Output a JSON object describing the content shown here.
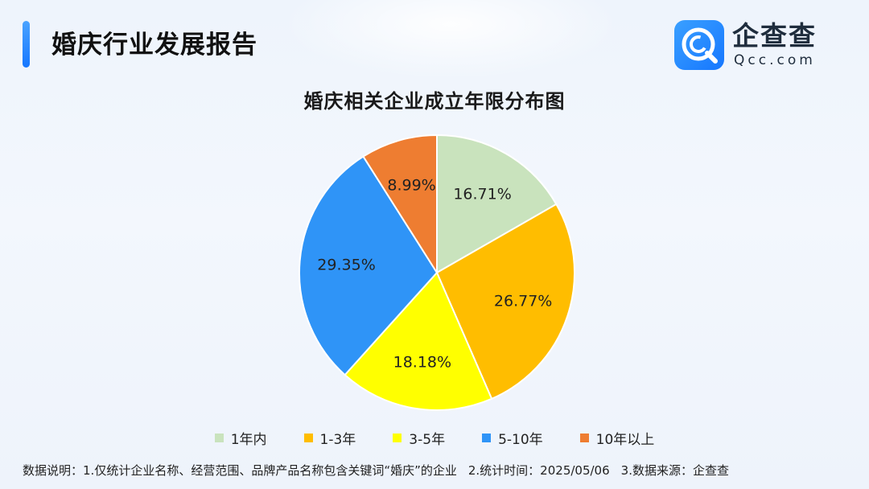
{
  "header": {
    "title": "婚庆行业发展报告",
    "logo_text": "企查查",
    "logo_sub": "Qcc.com",
    "logo_mark_letter": "Q",
    "accent_color": "#1677ff"
  },
  "chart_data": {
    "type": "pie",
    "title": "婚庆相关企业成立年限分布图",
    "legend_position": "bottom",
    "slices": [
      {
        "label": "1年内",
        "value": 16.71,
        "value_label": "16.71%",
        "color": "#c9e3bd"
      },
      {
        "label": "1-3年",
        "value": 26.77,
        "value_label": "26.77%",
        "color": "#ffbd00"
      },
      {
        "label": "3-5年",
        "value": 18.18,
        "value_label": "18.18%",
        "color": "#ffff00"
      },
      {
        "label": "5-10年",
        "value": 29.35,
        "value_label": "29.35%",
        "color": "#2f94f7"
      },
      {
        "label": "10年以上",
        "value": 8.99,
        "value_label": "8.99%",
        "color": "#ee7d31"
      }
    ]
  },
  "footnote": {
    "label": "数据说明：",
    "note1": "1.仅统计企业名称、经营范围、品牌产品名称包含关键词“婚庆”的企业",
    "note2": "2.统计时间：2025/05/06",
    "note3": "3.数据来源：企查查"
  }
}
